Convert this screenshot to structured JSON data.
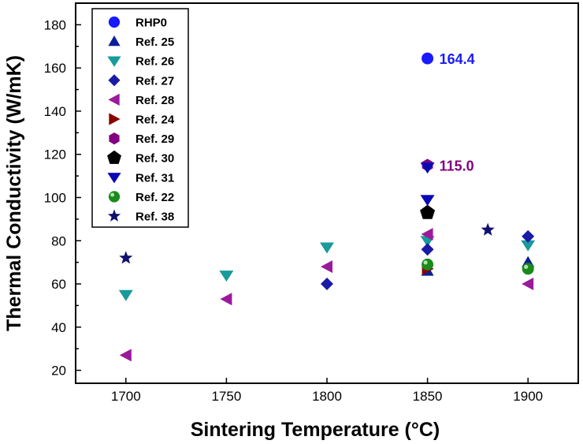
{
  "chart_data": {
    "type": "scatter",
    "xlabel": "Sintering Temperature (°C)",
    "ylabel": "Thermal Conductivity (W/mK)",
    "xlim": [
      1675,
      1925
    ],
    "ylim": [
      14,
      190
    ],
    "xticks": [
      1700,
      1750,
      1800,
      1850,
      1900
    ],
    "yticks": [
      20,
      40,
      60,
      80,
      100,
      120,
      140,
      160,
      180
    ],
    "legend_position": "top-left",
    "series": [
      {
        "name": "RHP0",
        "marker": "circle",
        "color": "#1a1aff",
        "points": [
          [
            1850,
            164.4
          ]
        ]
      },
      {
        "name": "Ref. 25",
        "marker": "triangle-up",
        "color": "#0a1e96",
        "points": [
          [
            1850,
            66
          ],
          [
            1900,
            70
          ]
        ]
      },
      {
        "name": "Ref. 26",
        "marker": "triangle-down",
        "color": "#1a9a9a",
        "points": [
          [
            1700,
            55
          ],
          [
            1750,
            64
          ],
          [
            1800,
            77
          ],
          [
            1850,
            80
          ],
          [
            1900,
            78
          ]
        ]
      },
      {
        "name": "Ref. 27",
        "marker": "diamond",
        "color": "#1a1aa8",
        "points": [
          [
            1800,
            60
          ],
          [
            1850,
            76
          ],
          [
            1900,
            82
          ]
        ]
      },
      {
        "name": "Ref. 28",
        "marker": "triangle-left",
        "color": "#9b1a9b",
        "points": [
          [
            1700,
            27
          ],
          [
            1750,
            53
          ],
          [
            1800,
            68
          ],
          [
            1850,
            83
          ],
          [
            1900,
            60
          ]
        ]
      },
      {
        "name": "Ref. 24",
        "marker": "triangle-right",
        "color": "#8b0000",
        "points": [
          [
            1850,
            67
          ]
        ]
      },
      {
        "name": "Ref. 29",
        "marker": "hexagon",
        "color": "#800080",
        "points": [
          [
            1850,
            115
          ]
        ]
      },
      {
        "name": "Ref. 30",
        "marker": "pentagon",
        "color": "#000000",
        "points": [
          [
            1850,
            93
          ]
        ]
      },
      {
        "name": "Ref. 31",
        "marker": "triangle-down",
        "color": "#0a0ab4",
        "points": [
          [
            1850,
            114
          ],
          [
            1850,
            99
          ]
        ]
      },
      {
        "name": "Ref. 22",
        "marker": "sphere",
        "color": "#1a8a1a",
        "points": [
          [
            1850,
            69
          ],
          [
            1900,
            67
          ]
        ]
      },
      {
        "name": "Ref. 38",
        "marker": "star",
        "color": "#10106e",
        "points": [
          [
            1700,
            72
          ],
          [
            1880,
            85
          ]
        ]
      }
    ],
    "annotations": [
      {
        "text": "164.4",
        "x": 1850,
        "y": 164.4,
        "color": "#1a1aff"
      },
      {
        "text": "115.0",
        "x": 1850,
        "y": 115.0,
        "color": "#800080"
      }
    ]
  }
}
